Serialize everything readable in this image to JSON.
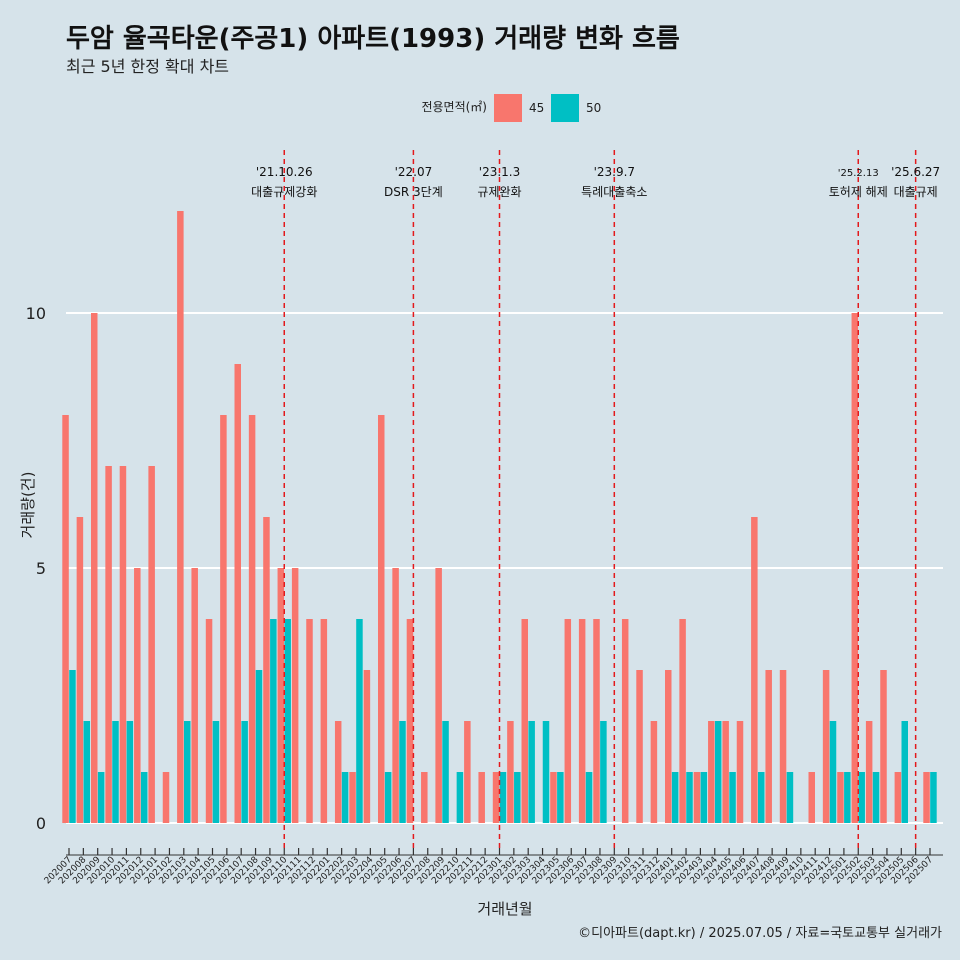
{
  "chart_data": {
    "type": "bar",
    "title": "두암 율곡타운(주공1) 아파트(1993) 거래량 변화 흐름",
    "subtitle": "최근 5년 한정 확대 차트",
    "xlabel": "거래년월",
    "ylabel": "거래량(건)",
    "caption": "©디아파트(dapt.kr) / 2025.07.05 / 자료=국토교통부 실거래가",
    "legend": {
      "title": "전용면적(㎡)",
      "position": "top"
    },
    "ylim": [
      0,
      12
    ],
    "yticks": [
      0,
      5,
      10
    ],
    "grid": true,
    "categories": [
      "202007",
      "202008",
      "202009",
      "202010",
      "202011",
      "202012",
      "202101",
      "202102",
      "202103",
      "202104",
      "202105",
      "202106",
      "202107",
      "202108",
      "202109",
      "202110",
      "202111",
      "202112",
      "202201",
      "202202",
      "202203",
      "202204",
      "202205",
      "202206",
      "202207",
      "202208",
      "202209",
      "202210",
      "202211",
      "202212",
      "202301",
      "202302",
      "202303",
      "202304",
      "202305",
      "202306",
      "202307",
      "202308",
      "202309",
      "202310",
      "202311",
      "202312",
      "202401",
      "202402",
      "202403",
      "202404",
      "202405",
      "202406",
      "202407",
      "202408",
      "202409",
      "202410",
      "202411",
      "202412",
      "202501",
      "202502",
      "202503",
      "202504",
      "202505",
      "202506",
      "202507"
    ],
    "series": [
      {
        "name": "45",
        "color": "#f8766d",
        "values": [
          8,
          6,
          10,
          7,
          7,
          5,
          7,
          1,
          12,
          5,
          4,
          8,
          9,
          8,
          6,
          5,
          5,
          4,
          4,
          2,
          1,
          3,
          8,
          5,
          4,
          1,
          5,
          0,
          2,
          1,
          1,
          2,
          4,
          0,
          1,
          4,
          4,
          4,
          0,
          4,
          3,
          2,
          3,
          4,
          1,
          2,
          2,
          2,
          6,
          3,
          3,
          0,
          1,
          3,
          1,
          10,
          2,
          3,
          1,
          0,
          1
        ]
      },
      {
        "name": "50",
        "color": "#00bfc4",
        "values": [
          3,
          2,
          1,
          2,
          2,
          1,
          0,
          0,
          2,
          0,
          2,
          0,
          2,
          3,
          4,
          4,
          0,
          0,
          0,
          1,
          4,
          0,
          1,
          2,
          0,
          0,
          2,
          1,
          0,
          0,
          1,
          1,
          2,
          2,
          1,
          0,
          1,
          2,
          0,
          0,
          0,
          0,
          1,
          1,
          1,
          2,
          1,
          0,
          1,
          0,
          1,
          0,
          0,
          2,
          1,
          1,
          1,
          0,
          2,
          0,
          1
        ]
      }
    ],
    "annotations": [
      {
        "at": "202110",
        "date": "'21.10.26",
        "label": "대출규제강화"
      },
      {
        "at": "202207",
        "date": "'22.07",
        "label": "DSR 3단계"
      },
      {
        "at": "202301",
        "date": "'23.1.3",
        "label": "규제완화"
      },
      {
        "at": "202309",
        "date": "'23.9.7",
        "label": "특례대출축소"
      },
      {
        "at": "202502",
        "date": "'25.2.13",
        "label": "토허제 해제"
      },
      {
        "at": "202506",
        "date": "'25.6.27",
        "label": "대출규제"
      }
    ]
  }
}
